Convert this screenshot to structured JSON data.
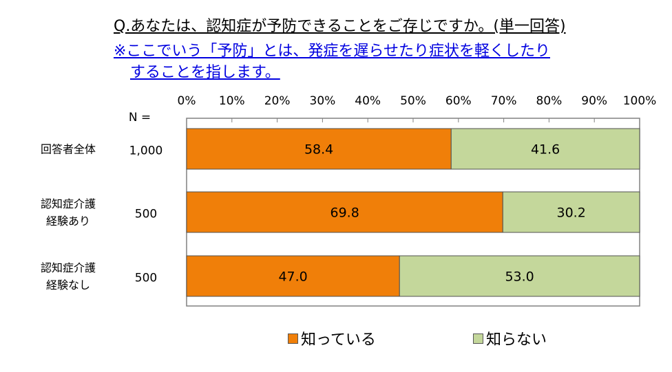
{
  "question": {
    "title": "Q.あなたは、認知症が予防できることをご存じですか。(単一回答)",
    "note_line1": "※ここでいう「予防」とは、発症を遅らせたり症状を軽くしたり",
    "note_line2": "することを指します。"
  },
  "chart_data": {
    "type": "bar",
    "orientation": "horizontal",
    "stacked": true,
    "n_header": "N =",
    "x_ticks": [
      "0%",
      "10%",
      "20%",
      "30%",
      "40%",
      "50%",
      "60%",
      "70%",
      "80%",
      "90%",
      "100%"
    ],
    "xlim": [
      0,
      100
    ],
    "categories": [
      {
        "lines": [
          "回答者全体"
        ],
        "n": "1,000"
      },
      {
        "lines": [
          "認知症介護",
          "経験あり"
        ],
        "n": "500"
      },
      {
        "lines": [
          "認知症介護",
          "経験なし"
        ],
        "n": "500"
      }
    ],
    "series": [
      {
        "name": "知っている",
        "color": "#F07F09",
        "values": [
          58.4,
          69.8,
          47.0
        ],
        "labels": [
          "58.4",
          "69.8",
          "47.0"
        ]
      },
      {
        "name": "知らない",
        "color": "#C4D79B",
        "values": [
          41.6,
          30.2,
          53.0
        ],
        "labels": [
          "41.6",
          "30.2",
          "53.0"
        ]
      }
    ],
    "legend_position": "bottom",
    "grid": false
  }
}
